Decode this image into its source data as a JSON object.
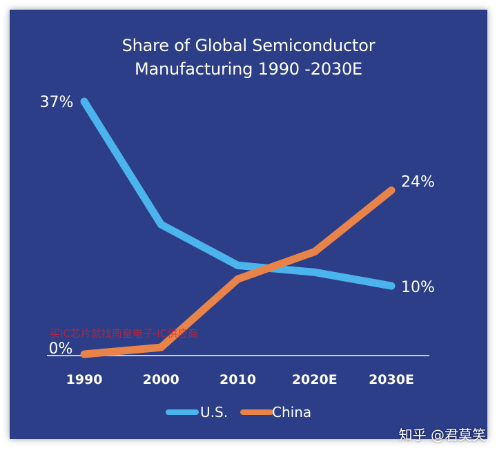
{
  "chart_data": {
    "type": "line",
    "title_lines": [
      "Share of Global Semiconductor",
      "Manufacturing 1990 -2030E"
    ],
    "categories": [
      "1990",
      "2000",
      "2010",
      "2020E",
      "2030E"
    ],
    "series": [
      {
        "name": "U.S.",
        "color": "#4bb4ec",
        "values": [
          37,
          19,
          13,
          12,
          10
        ]
      },
      {
        "name": "China",
        "color": "#e8844a",
        "values": [
          0,
          1,
          11,
          15,
          24
        ]
      }
    ],
    "data_labels": [
      {
        "series": 0,
        "index": 0,
        "text": "37%"
      },
      {
        "series": 0,
        "index": 4,
        "text": "10%"
      },
      {
        "series": 1,
        "index": 4,
        "text": "24%"
      },
      {
        "series": 1,
        "index": 0,
        "text": "0%"
      }
    ],
    "ylim": [
      0,
      37
    ],
    "legend_position": "bottom",
    "grid": false
  },
  "watermarks": {
    "overlay_text": "买IC芯片就找南皇电子-IC供应商",
    "credit": "知乎 @君莫笑"
  }
}
